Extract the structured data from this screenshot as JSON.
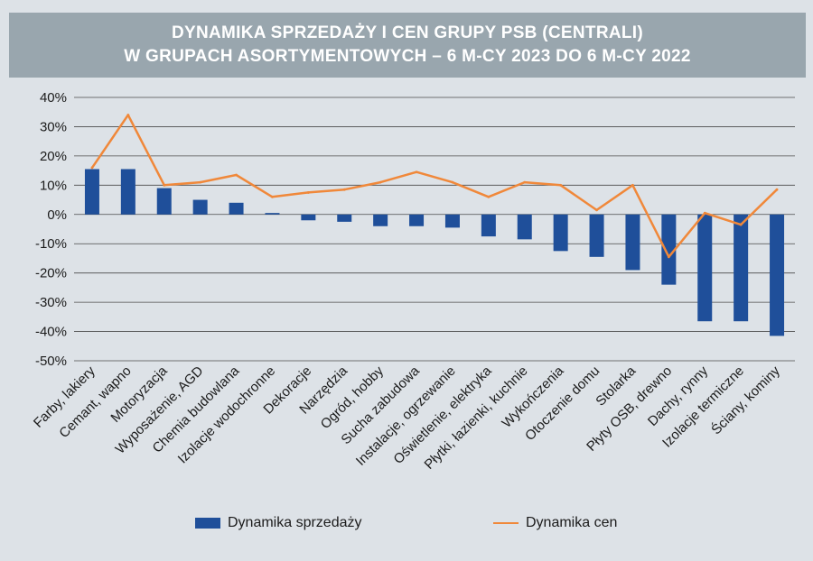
{
  "colors": {
    "bar": "#1f4f9a",
    "line": "#f0883a",
    "title_bg": "#99a6ae",
    "background": "#dde2e7",
    "grid": "#4a4a4a"
  },
  "chart_data": {
    "type": "bar",
    "title": "DYNAMIKA SPRZEDAŻY I CEN GRUPY PSB (CENTRALI)",
    "subtitle": "W GRUPACH ASORTYMENTOWYCH – 6 M-CY 2023 DO 6 M-CY 2022",
    "xlabel": "",
    "ylabel": "",
    "ylim": [
      -50,
      40
    ],
    "yticks": [
      40,
      30,
      20,
      10,
      0,
      -10,
      -20,
      -30,
      -40,
      -50
    ],
    "ytick_labels": [
      "40%",
      "30%",
      "20%",
      "10%",
      "0%",
      "-10%",
      "-20%",
      "-30%",
      "-40%",
      "-50%"
    ],
    "grid": true,
    "legend_position": "bottom",
    "categories": [
      "Farby, lakiery",
      "Cemant, wapno",
      "Motoryzacja",
      "Wyposażenie, AGD",
      "Chemia budowlana",
      "Izolacje wodochronne",
      "Dekoracje",
      "Narzędzia",
      "Ogród, hobby",
      "Sucha zabudowa",
      "Instalacje, ogrzewanie",
      "Oświetlenie, elektryka",
      "Płytki, łazienki, kuchnie",
      "Wykończenia",
      "Otoczenie domu",
      "Stolarka",
      "Płyty OSB, drewno",
      "Dachy, rynny",
      "Izolacje termiczne",
      "Ściany, kominy"
    ],
    "series": [
      {
        "name": "Dynamika sprzedaży",
        "kind": "bar",
        "values": [
          15.5,
          15.5,
          9,
          5,
          4,
          0.5,
          -2,
          -2.5,
          -4,
          -4,
          -4.5,
          -7.5,
          -8.5,
          -12.5,
          -14.5,
          -19,
          -24,
          -36.5,
          -36.5,
          -41.5
        ]
      },
      {
        "name": "Dynamika cen",
        "kind": "line",
        "values": [
          16,
          34,
          10,
          11,
          13.5,
          6,
          7.5,
          8.5,
          11,
          14.5,
          11,
          6,
          11,
          10,
          1.5,
          10,
          -14.5,
          0.5,
          -3.5,
          8.5
        ]
      }
    ]
  }
}
